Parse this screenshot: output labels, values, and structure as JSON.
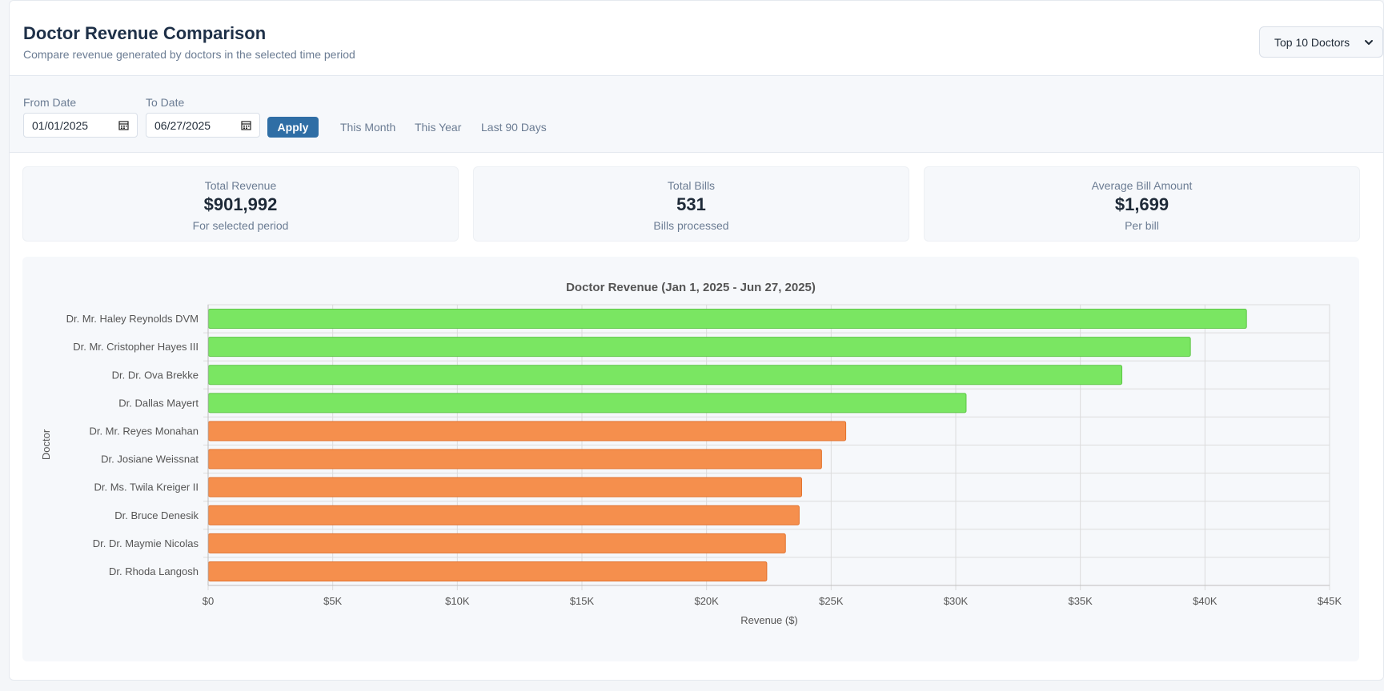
{
  "header": {
    "title": "Doctor Revenue Comparison",
    "subtitle": "Compare revenue generated by doctors in the selected time period",
    "top_select": "Top 10 Doctors"
  },
  "filters": {
    "from_label": "From Date",
    "from_value": "01/01/2025",
    "to_label": "To Date",
    "to_value": "06/27/2025",
    "apply_label": "Apply",
    "quick_ranges": [
      "This Month",
      "This Year",
      "Last 90 Days"
    ]
  },
  "stats": [
    {
      "label": "Total Revenue",
      "value": "$901,992",
      "note": "For selected period"
    },
    {
      "label": "Total Bills",
      "value": "531",
      "note": "Bills processed"
    },
    {
      "label": "Average Bill Amount",
      "value": "$1,699",
      "note": "Per bill"
    }
  ],
  "chart_data": {
    "type": "bar",
    "orientation": "horizontal",
    "title": "Doctor Revenue (Jan 1, 2025 - Jun 27, 2025)",
    "xlabel": "Revenue ($)",
    "ylabel": "Doctor",
    "xlim": [
      0,
      45000
    ],
    "x_ticks": [
      0,
      5000,
      10000,
      15000,
      20000,
      25000,
      30000,
      35000,
      40000,
      45000
    ],
    "x_tick_labels": [
      "$0",
      "$5K",
      "$10K",
      "$15K",
      "$20K",
      "$25K",
      "$30K",
      "$35K",
      "$40K",
      "$45K"
    ],
    "grid": true,
    "categories": [
      "Dr. Mr. Haley Reynolds DVM",
      "Dr. Mr. Cristopher Hayes III",
      "Dr. Dr. Ova Brekke",
      "Dr. Dallas Mayert",
      "Dr. Mr. Reyes Monahan",
      "Dr. Josiane Weissnat",
      "Dr. Ms. Twila Kreiger II",
      "Dr. Bruce Denesik",
      "Dr. Dr. Maymie Nicolas",
      "Dr. Rhoda Langosh"
    ],
    "values": [
      41650,
      39400,
      36650,
      30400,
      25570,
      24600,
      23800,
      23700,
      23150,
      22400
    ],
    "colors": [
      "#7ae662",
      "#7ae662",
      "#7ae662",
      "#7ae662",
      "#f58f4d",
      "#f58f4d",
      "#f58f4d",
      "#f58f4d",
      "#f58f4d",
      "#f58f4d"
    ],
    "border_colors": [
      "#5cc546",
      "#5cc546",
      "#5cc546",
      "#5cc546",
      "#e2712c",
      "#e2712c",
      "#e2712c",
      "#e2712c",
      "#e2712c",
      "#e2712c"
    ]
  }
}
